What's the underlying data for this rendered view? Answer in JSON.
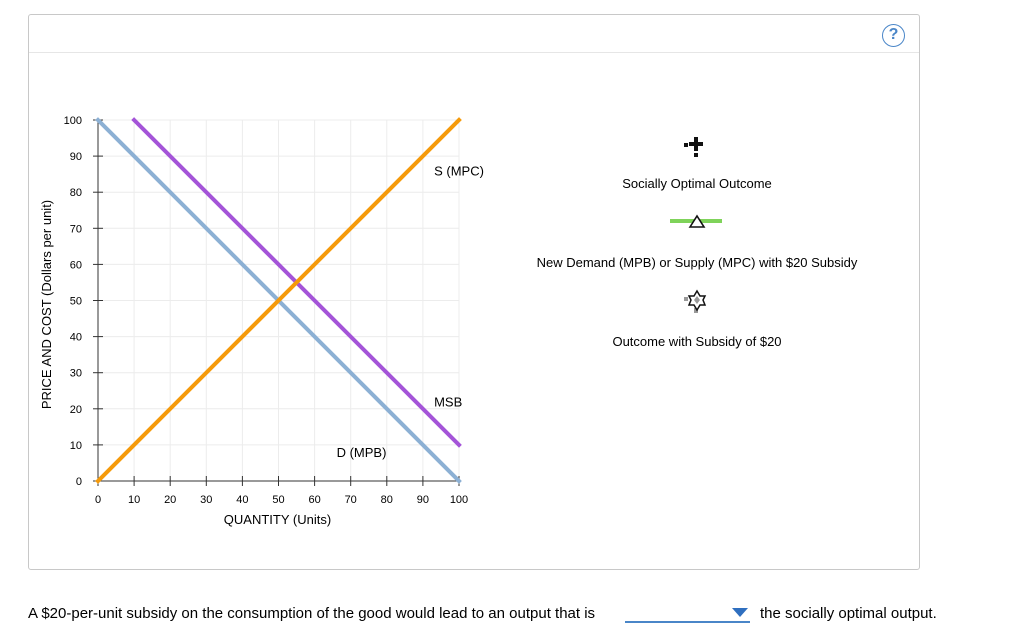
{
  "help": {
    "label": "?"
  },
  "chart_data": {
    "type": "line",
    "xlabel": "QUANTITY (Units)",
    "ylabel": "PRICE AND COST (Dollars per unit)",
    "xlim": [
      0,
      100
    ],
    "ylim": [
      0,
      100
    ],
    "xticks": [
      0,
      10,
      20,
      30,
      40,
      50,
      60,
      70,
      80,
      90,
      100
    ],
    "yticks": [
      0,
      10,
      20,
      30,
      40,
      50,
      60,
      70,
      80,
      90,
      100
    ],
    "grid": true,
    "series": [
      {
        "name": "D (MPB)",
        "color": "#8cb0d4",
        "points": [
          [
            0,
            100
          ],
          [
            100,
            0
          ]
        ],
        "label_at": [
          73,
          8
        ]
      },
      {
        "name": "MSB",
        "color": "#a454d8",
        "points": [
          [
            10,
            100
          ],
          [
            100,
            10
          ]
        ],
        "label_at": [
          97,
          22
        ]
      },
      {
        "name": "S (MPC)",
        "color": "#f59a0a",
        "points": [
          [
            0,
            0
          ],
          [
            100,
            100
          ]
        ],
        "label_at": [
          100,
          86
        ]
      }
    ]
  },
  "legend": {
    "items": [
      {
        "icon": "plus-cross-icon",
        "label": "Socially Optimal Outcome"
      },
      {
        "icon": "green-line-triangle-icon",
        "label": "New Demand (MPB) or Supply (MPC) with $20 Subsidy",
        "color": "#7fd35a"
      },
      {
        "icon": "star-cross-icon",
        "label": "Outcome with Subsidy of $20"
      }
    ]
  },
  "question": {
    "prefix": "A $20-per-unit subsidy on the consumption of the good would lead to an output that is",
    "selected": "",
    "suffix": "the socially optimal output."
  }
}
